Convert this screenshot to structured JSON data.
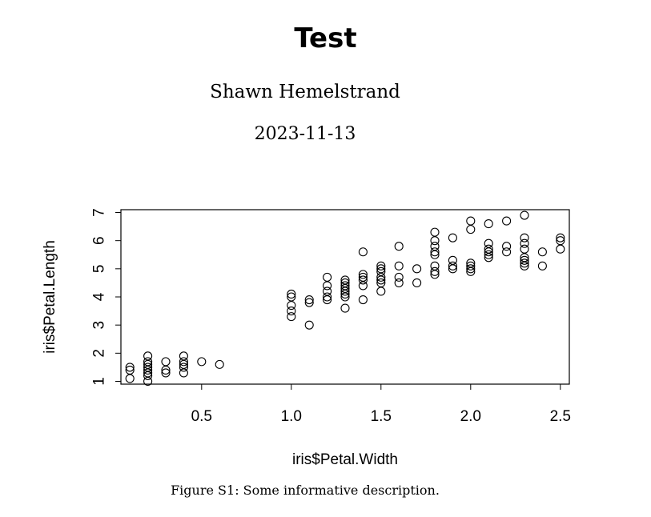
{
  "document": {
    "title": "Test",
    "author": "Shawn Hemelstrand",
    "date": "2023-11-13",
    "caption": "Figure S1: Some informative description."
  },
  "chart_data": {
    "type": "scatter",
    "title": "",
    "xlabel": "iris$Petal.Width",
    "ylabel": "iris$Petal.Length",
    "xlim": [
      0.05,
      2.55
    ],
    "ylim": [
      0.9,
      7.1
    ],
    "xticks": [
      0.5,
      1.0,
      1.5,
      2.0,
      2.5
    ],
    "xtick_labels": [
      "0.5",
      "1.0",
      "1.5",
      "2.0",
      "2.5"
    ],
    "yticks": [
      1,
      2,
      3,
      4,
      5,
      6,
      7
    ],
    "ytick_labels": [
      "1",
      "2",
      "3",
      "4",
      "5",
      "6",
      "7"
    ],
    "marker": "open-circle",
    "grid": false,
    "legend": "none",
    "points": [
      [
        0.1,
        1.1
      ],
      [
        0.1,
        1.4
      ],
      [
        0.1,
        1.5
      ],
      [
        0.2,
        1.0
      ],
      [
        0.2,
        1.2
      ],
      [
        0.2,
        1.3
      ],
      [
        0.2,
        1.4
      ],
      [
        0.2,
        1.5
      ],
      [
        0.2,
        1.6
      ],
      [
        0.2,
        1.7
      ],
      [
        0.2,
        1.9
      ],
      [
        0.3,
        1.3
      ],
      [
        0.3,
        1.4
      ],
      [
        0.3,
        1.7
      ],
      [
        0.4,
        1.3
      ],
      [
        0.4,
        1.5
      ],
      [
        0.4,
        1.6
      ],
      [
        0.4,
        1.7
      ],
      [
        0.4,
        1.9
      ],
      [
        0.5,
        1.7
      ],
      [
        0.6,
        1.6
      ],
      [
        1.0,
        3.3
      ],
      [
        1.0,
        3.5
      ],
      [
        1.0,
        3.7
      ],
      [
        1.0,
        4.0
      ],
      [
        1.0,
        4.1
      ],
      [
        1.1,
        3.0
      ],
      [
        1.1,
        3.8
      ],
      [
        1.1,
        3.9
      ],
      [
        1.2,
        3.9
      ],
      [
        1.2,
        4.0
      ],
      [
        1.2,
        4.2
      ],
      [
        1.2,
        4.4
      ],
      [
        1.2,
        4.7
      ],
      [
        1.3,
        3.6
      ],
      [
        1.3,
        4.0
      ],
      [
        1.3,
        4.1
      ],
      [
        1.3,
        4.2
      ],
      [
        1.3,
        4.3
      ],
      [
        1.3,
        4.4
      ],
      [
        1.3,
        4.5
      ],
      [
        1.3,
        4.6
      ],
      [
        1.4,
        3.9
      ],
      [
        1.4,
        4.4
      ],
      [
        1.4,
        4.6
      ],
      [
        1.4,
        4.7
      ],
      [
        1.4,
        4.8
      ],
      [
        1.4,
        5.6
      ],
      [
        1.5,
        4.2
      ],
      [
        1.5,
        4.5
      ],
      [
        1.5,
        4.6
      ],
      [
        1.5,
        4.7
      ],
      [
        1.5,
        4.9
      ],
      [
        1.5,
        5.0
      ],
      [
        1.5,
        5.1
      ],
      [
        1.6,
        4.5
      ],
      [
        1.6,
        4.7
      ],
      [
        1.6,
        5.1
      ],
      [
        1.6,
        5.8
      ],
      [
        1.7,
        4.5
      ],
      [
        1.7,
        5.0
      ],
      [
        1.8,
        4.8
      ],
      [
        1.8,
        4.9
      ],
      [
        1.8,
        5.1
      ],
      [
        1.8,
        5.5
      ],
      [
        1.8,
        5.6
      ],
      [
        1.8,
        5.8
      ],
      [
        1.8,
        6.0
      ],
      [
        1.8,
        6.3
      ],
      [
        1.9,
        5.0
      ],
      [
        1.9,
        5.1
      ],
      [
        1.9,
        5.3
      ],
      [
        1.9,
        6.1
      ],
      [
        2.0,
        4.9
      ],
      [
        2.0,
        5.0
      ],
      [
        2.0,
        5.1
      ],
      [
        2.0,
        5.2
      ],
      [
        2.0,
        6.4
      ],
      [
        2.0,
        6.7
      ],
      [
        2.1,
        5.4
      ],
      [
        2.1,
        5.5
      ],
      [
        2.1,
        5.6
      ],
      [
        2.1,
        5.7
      ],
      [
        2.1,
        5.9
      ],
      [
        2.1,
        6.6
      ],
      [
        2.2,
        5.6
      ],
      [
        2.2,
        5.8
      ],
      [
        2.2,
        6.7
      ],
      [
        2.3,
        5.1
      ],
      [
        2.3,
        5.2
      ],
      [
        2.3,
        5.3
      ],
      [
        2.3,
        5.4
      ],
      [
        2.3,
        5.7
      ],
      [
        2.3,
        5.9
      ],
      [
        2.3,
        6.1
      ],
      [
        2.3,
        6.9
      ],
      [
        2.4,
        5.1
      ],
      [
        2.4,
        5.6
      ],
      [
        2.5,
        5.7
      ],
      [
        2.5,
        6.0
      ],
      [
        2.5,
        6.1
      ]
    ]
  }
}
